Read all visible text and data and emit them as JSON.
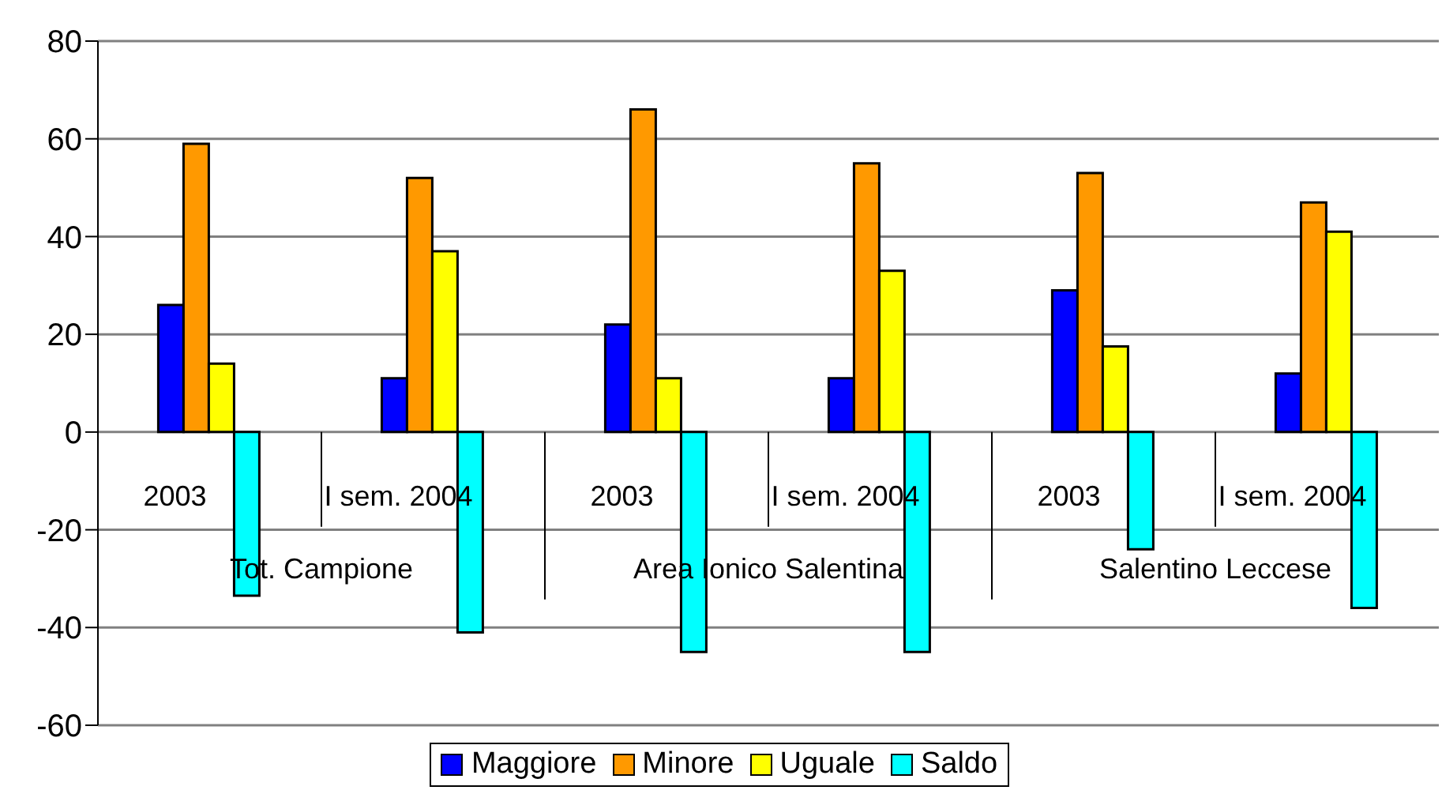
{
  "chart_data": {
    "type": "bar",
    "categories": [
      "2003",
      "I  sem. 2004",
      "2003",
      "I  sem. 2004",
      "2003",
      "I  sem. 2004"
    ],
    "annotations": [
      "Tot. Campione",
      "Area Ionico Salentina",
      "Salentino Leccese"
    ],
    "series": [
      {
        "name": "Maggiore",
        "color": "#0000ff",
        "values": [
          26,
          11,
          22,
          11,
          29,
          12
        ]
      },
      {
        "name": "Minore",
        "color": "#ff9900",
        "values": [
          59,
          52,
          66,
          55,
          53,
          47
        ]
      },
      {
        "name": "Uguale",
        "color": "#ffff00",
        "values": [
          14,
          37,
          11,
          33,
          17.5,
          41
        ]
      },
      {
        "name": "Saldo",
        "color": "#00ffff",
        "values": [
          -33.5,
          -41,
          -45,
          -45,
          -24,
          -36
        ]
      }
    ],
    "ylim": [
      -60,
      80
    ],
    "yticks": [
      -60,
      -40,
      -20,
      0,
      20,
      40,
      60,
      80
    ],
    "grid": "y",
    "legend": "bottom"
  }
}
